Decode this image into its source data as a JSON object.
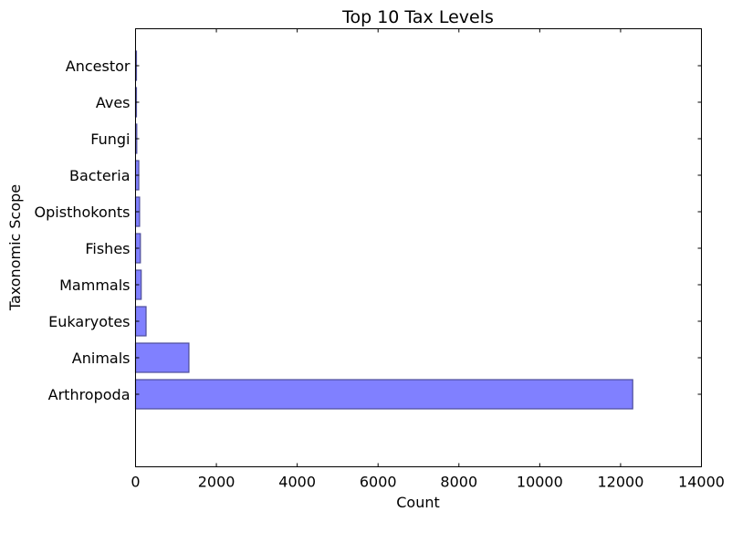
{
  "chart_data": {
    "type": "bar",
    "orientation": "horizontal",
    "title": "Top 10 Tax Levels",
    "xlabel": "Count",
    "ylabel": "Taxonomic Scope",
    "categories": [
      "Arthropoda",
      "Animals",
      "Eukaryotes",
      "Mammals",
      "Fishes",
      "Opisthokonts",
      "Bacteria",
      "Fungi",
      "Aves",
      "Ancestor"
    ],
    "values": [
      12300,
      1320,
      260,
      140,
      120,
      100,
      80,
      30,
      20,
      15
    ],
    "xlim": [
      0,
      14000
    ],
    "xticks": [
      0,
      2000,
      4000,
      6000,
      8000,
      10000,
      12000,
      14000
    ],
    "xtick_labels": [
      "0",
      "2000",
      "4000",
      "6000",
      "8000",
      "10000",
      "12000",
      "14000"
    ],
    "grid": false,
    "legend": "none",
    "bar_color": "#8080ff",
    "bar_edge_color": "#4d4d99"
  }
}
